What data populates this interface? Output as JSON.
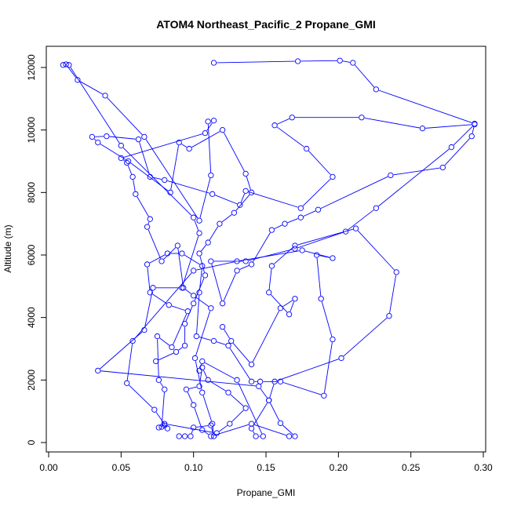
{
  "chart_data": {
    "type": "line",
    "title": "ATOM4 Northeast_Pacific_2 Propane_GMI",
    "xlabel": "Propane_GMI",
    "ylabel": "Altitude (m)",
    "xlim": [
      0.0,
      0.3
    ],
    "ylim": [
      0,
      12000
    ],
    "x_ticks": [
      0.0,
      0.05,
      0.1,
      0.15,
      0.2,
      0.25,
      0.3
    ],
    "x_tick_labels": [
      "0.00",
      "0.05",
      "0.10",
      "0.15",
      "0.20",
      "0.25",
      "0.30"
    ],
    "y_ticks": [
      0,
      2000,
      4000,
      6000,
      8000,
      10000,
      12000
    ],
    "y_tick_labels": [
      "0",
      "2000",
      "4000",
      "6000",
      "8000",
      "10000",
      "12000"
    ],
    "grid": false,
    "color": "#0000ff",
    "marker": "open-circle",
    "series": [
      {
        "points": [
          [
            0.09,
            200
          ],
          [
            0.094,
            200
          ],
          [
            0.098,
            200
          ],
          [
            0.1,
            480
          ],
          [
            0.112,
            550
          ],
          [
            0.114,
            200
          ],
          [
            0.113,
            600
          ],
          [
            0.106,
            1600
          ],
          [
            0.101,
            2700
          ],
          [
            0.112,
            4300
          ],
          [
            0.1,
            4700
          ],
          [
            0.093,
            4950
          ],
          [
            0.089,
            6300
          ],
          [
            0.078,
            5800
          ],
          [
            0.068,
            6900
          ],
          [
            0.07,
            7150
          ],
          [
            0.06,
            7950
          ],
          [
            0.058,
            8500
          ],
          [
            0.054,
            8950
          ],
          [
            0.05,
            9100
          ],
          [
            0.108,
            9900
          ],
          [
            0.114,
            10300
          ],
          [
            0.11,
            10270
          ],
          [
            0.112,
            8550
          ],
          [
            0.104,
            7100
          ],
          [
            0.066,
            9780
          ],
          [
            0.039,
            11100
          ],
          [
            0.02,
            11600
          ],
          [
            0.012,
            12100
          ],
          [
            0.01,
            12080
          ],
          [
            0.014,
            12080
          ],
          [
            0.05,
            9500
          ],
          [
            0.1,
            7200
          ],
          [
            0.104,
            6700
          ],
          [
            0.092,
            4950
          ],
          [
            0.072,
            4950
          ],
          [
            0.066,
            3600
          ],
          [
            0.034,
            2300
          ],
          [
            0.145,
            1800
          ],
          [
            0.152,
            1350
          ],
          [
            0.16,
            620
          ],
          [
            0.17,
            200
          ],
          [
            0.166,
            200
          ],
          [
            0.14,
            600
          ],
          [
            0.112,
            200
          ],
          [
            0.106,
            400
          ],
          [
            0.1,
            1200
          ],
          [
            0.095,
            1700
          ],
          [
            0.104,
            1800
          ],
          [
            0.106,
            2400
          ],
          [
            0.11,
            2000
          ],
          [
            0.124,
            1600
          ],
          [
            0.136,
            1100
          ],
          [
            0.125,
            600
          ],
          [
            0.116,
            300
          ],
          [
            0.08,
            600
          ],
          [
            0.076,
            480
          ],
          [
            0.078,
            500
          ],
          [
            0.08,
            1700
          ],
          [
            0.076,
            2000
          ],
          [
            0.075,
            3400
          ],
          [
            0.085,
            3050
          ],
          [
            0.096,
            4200
          ],
          [
            0.083,
            4400
          ],
          [
            0.07,
            4800
          ],
          [
            0.068,
            5700
          ],
          [
            0.082,
            6050
          ],
          [
            0.092,
            6050
          ],
          [
            0.106,
            5650
          ],
          [
            0.104,
            4800
          ],
          [
            0.102,
            3400
          ],
          [
            0.114,
            3250
          ],
          [
            0.124,
            3100
          ],
          [
            0.14,
            1950
          ],
          [
            0.146,
            1950
          ],
          [
            0.16,
            1950
          ],
          [
            0.19,
            1500
          ],
          [
            0.196,
            3300
          ],
          [
            0.188,
            4600
          ],
          [
            0.185,
            6000
          ],
          [
            0.196,
            5900
          ],
          [
            0.175,
            6150
          ],
          [
            0.13,
            5800
          ],
          [
            0.1,
            5500
          ],
          [
            0.058,
            3250
          ],
          [
            0.054,
            1900
          ],
          [
            0.073,
            1050
          ],
          [
            0.082,
            450
          ],
          [
            0.08,
            550
          ]
        ]
      },
      {
        "points": [
          [
            0.104,
            2300
          ],
          [
            0.106,
            2600
          ],
          [
            0.13,
            2000
          ],
          [
            0.148,
            200
          ],
          [
            0.143,
            200
          ],
          [
            0.14,
            450
          ],
          [
            0.152,
            1350
          ],
          [
            0.156,
            1950
          ],
          [
            0.202,
            2700
          ],
          [
            0.235,
            4050
          ],
          [
            0.24,
            5450
          ],
          [
            0.212,
            6850
          ],
          [
            0.17,
            6300
          ],
          [
            0.154,
            5650
          ],
          [
            0.152,
            4800
          ],
          [
            0.166,
            4100
          ],
          [
            0.17,
            4600
          ],
          [
            0.16,
            4300
          ],
          [
            0.14,
            2500
          ],
          [
            0.126,
            3250
          ],
          [
            0.12,
            3700
          ]
        ]
      },
      {
        "points": [
          [
            0.114,
            12150
          ],
          [
            0.172,
            12200
          ],
          [
            0.201,
            12220
          ],
          [
            0.21,
            12150
          ],
          [
            0.226,
            11300
          ],
          [
            0.294,
            10200
          ],
          [
            0.292,
            9800
          ],
          [
            0.272,
            8800
          ],
          [
            0.236,
            8550
          ],
          [
            0.186,
            7450
          ],
          [
            0.174,
            7200
          ],
          [
            0.163,
            7000
          ],
          [
            0.154,
            6800
          ],
          [
            0.14,
            5700
          ],
          [
            0.13,
            5500
          ],
          [
            0.12,
            4450
          ],
          [
            0.112,
            5800
          ],
          [
            0.136,
            5800
          ],
          [
            0.17,
            6200
          ],
          [
            0.205,
            6750
          ],
          [
            0.226,
            7500
          ],
          [
            0.278,
            9450
          ],
          [
            0.294,
            10180
          ],
          [
            0.258,
            10050
          ],
          [
            0.216,
            10400
          ],
          [
            0.168,
            10400
          ],
          [
            0.156,
            10150
          ],
          [
            0.178,
            9400
          ],
          [
            0.196,
            8500
          ],
          [
            0.174,
            7500
          ],
          [
            0.136,
            8050
          ],
          [
            0.132,
            7600
          ],
          [
            0.113,
            7950
          ],
          [
            0.08,
            8400
          ],
          [
            0.07,
            8500
          ],
          [
            0.062,
            9700
          ],
          [
            0.04,
            9800
          ],
          [
            0.03,
            9780
          ],
          [
            0.034,
            9600
          ],
          [
            0.055,
            9000
          ],
          [
            0.084,
            8000
          ],
          [
            0.09,
            9600
          ],
          [
            0.097,
            9400
          ],
          [
            0.12,
            10000
          ],
          [
            0.136,
            8600
          ],
          [
            0.14,
            8000
          ],
          [
            0.128,
            7350
          ],
          [
            0.118,
            7000
          ],
          [
            0.11,
            6400
          ],
          [
            0.104,
            6050
          ],
          [
            0.108,
            5350
          ],
          [
            0.1,
            4450
          ],
          [
            0.094,
            3800
          ],
          [
            0.094,
            3100
          ],
          [
            0.088,
            2900
          ],
          [
            0.074,
            2600
          ]
        ]
      }
    ]
  }
}
